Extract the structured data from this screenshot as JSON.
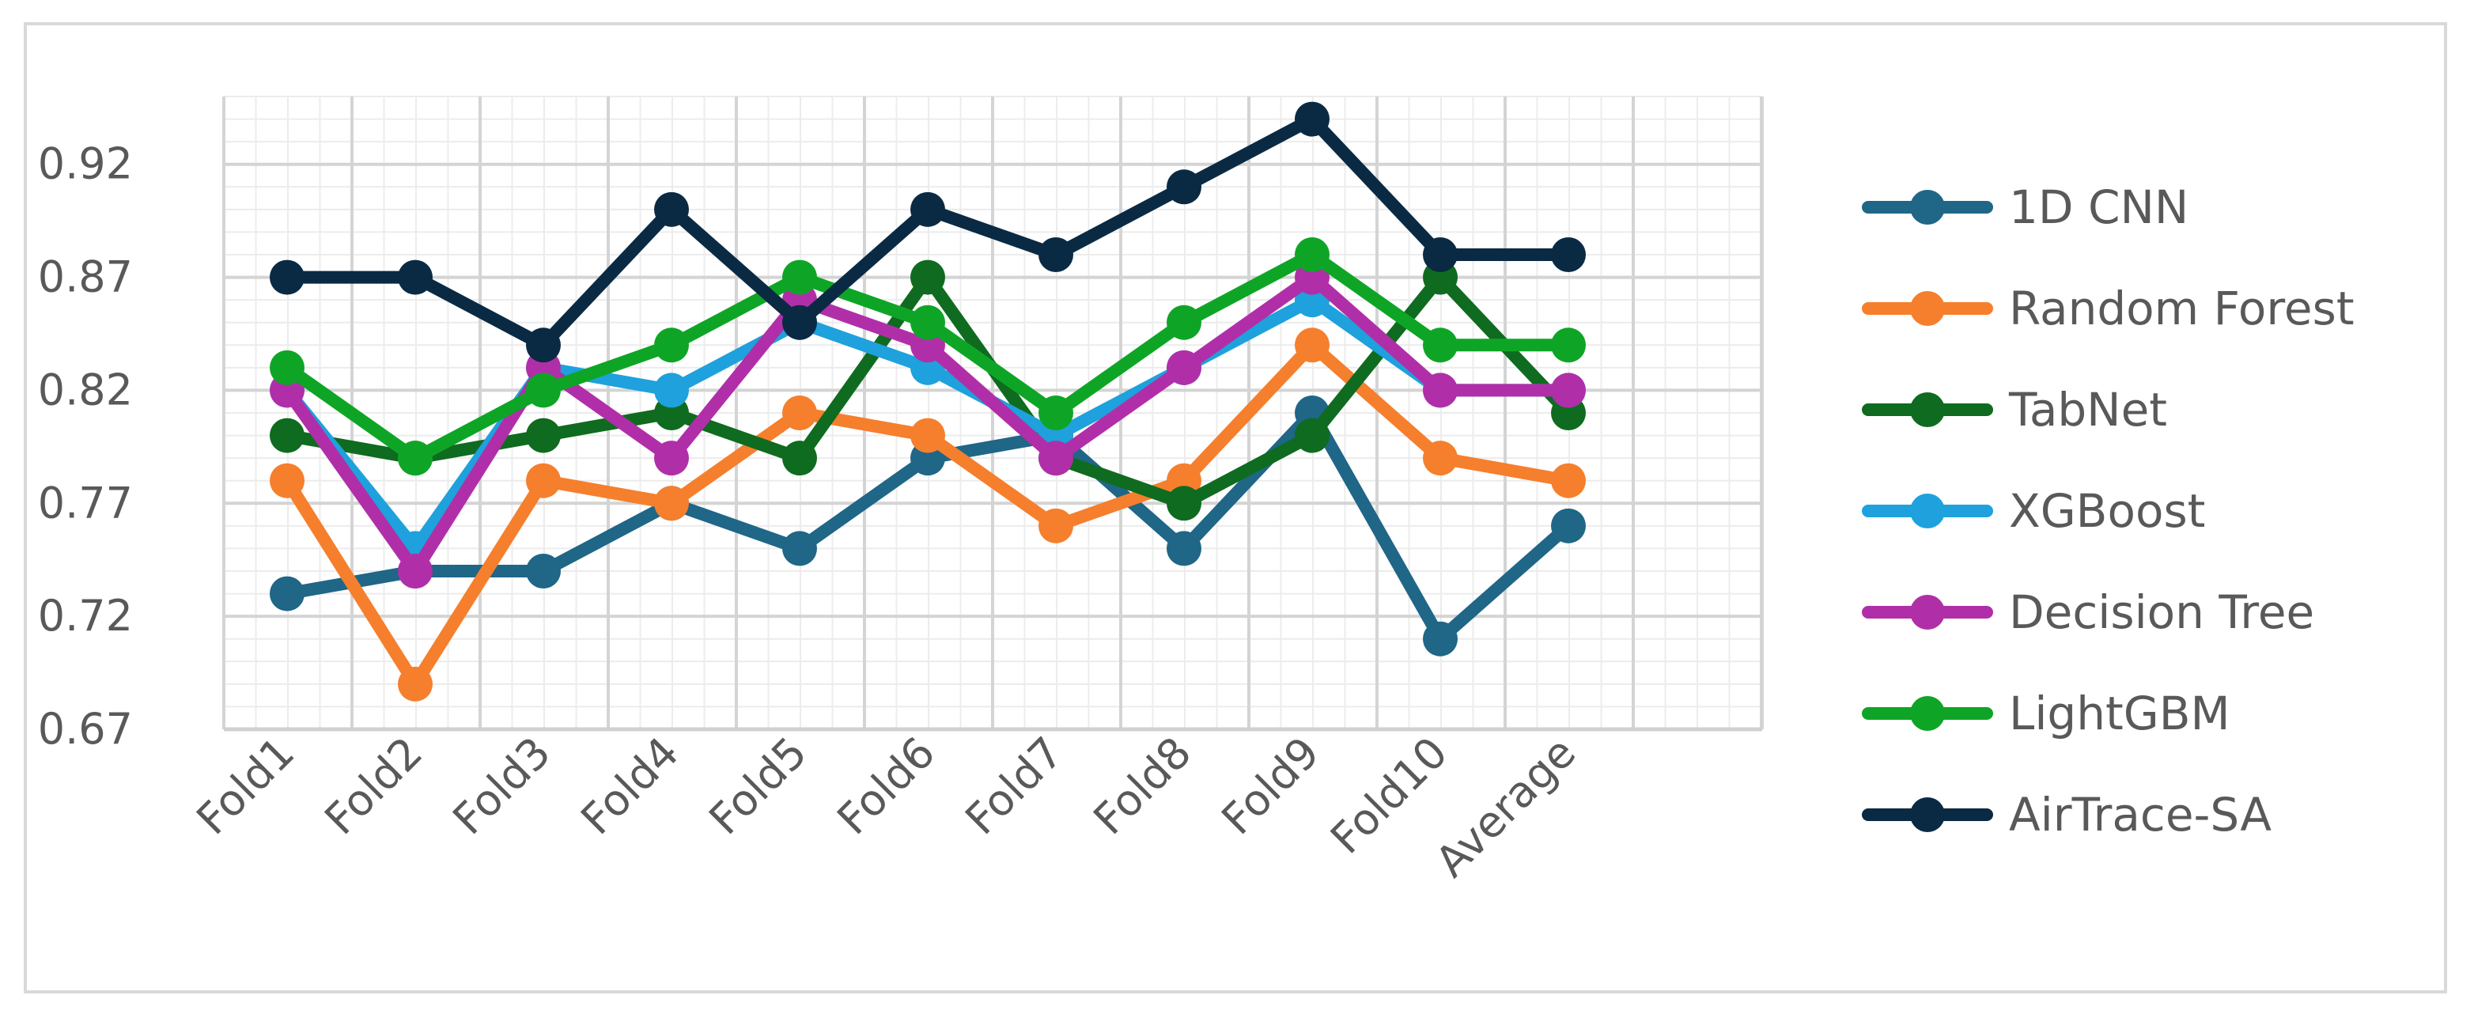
{
  "chart_data": {
    "type": "line",
    "title": "",
    "xlabel": "",
    "ylabel": "",
    "categories": [
      "Fold1",
      "Fold2",
      "Fold3",
      "Fold4",
      "Fold5",
      "Fold6",
      "Fold7",
      "Fold8",
      "Fold9",
      "Fold10",
      "Average"
    ],
    "y_ticks": [
      "0.67",
      "0.72",
      "0.77",
      "0.82",
      "0.87",
      "0.92"
    ],
    "ylim": [
      0.67,
      0.95
    ],
    "grid": true,
    "legend_position": "right",
    "series": [
      {
        "name": "1D CNN",
        "color": "#1f6687",
        "values": [
          0.73,
          0.74,
          0.74,
          0.77,
          0.75,
          0.79,
          0.8,
          0.75,
          0.81,
          0.71,
          0.76
        ]
      },
      {
        "name": "Random Forest",
        "color": "#f57f2d",
        "values": [
          0.78,
          0.69,
          0.78,
          0.77,
          0.81,
          0.8,
          0.76,
          0.78,
          0.84,
          0.79,
          0.78
        ]
      },
      {
        "name": "TabNet",
        "color": "#0f6b1f",
        "values": [
          0.8,
          0.79,
          0.8,
          0.81,
          0.79,
          0.87,
          0.79,
          0.77,
          0.8,
          0.87,
          0.81
        ]
      },
      {
        "name": "XGBoost",
        "color": "#1ea1dc",
        "values": [
          0.82,
          0.75,
          0.83,
          0.82,
          0.85,
          0.83,
          0.8,
          0.83,
          0.86,
          0.82,
          0.82
        ]
      },
      {
        "name": "Decision Tree",
        "color": "#b02fa8",
        "values": [
          0.82,
          0.74,
          0.83,
          0.79,
          0.86,
          0.84,
          0.79,
          0.83,
          0.87,
          0.82,
          0.82
        ]
      },
      {
        "name": "LightGBM",
        "color": "#0ea526",
        "values": [
          0.83,
          0.79,
          0.82,
          0.84,
          0.87,
          0.85,
          0.81,
          0.85,
          0.88,
          0.84,
          0.84
        ]
      },
      {
        "name": "AirTrace-SA",
        "color": "#0a2a44",
        "values": [
          0.87,
          0.87,
          0.84,
          0.9,
          0.85,
          0.9,
          0.88,
          0.91,
          0.94,
          0.88,
          0.88
        ]
      }
    ]
  }
}
